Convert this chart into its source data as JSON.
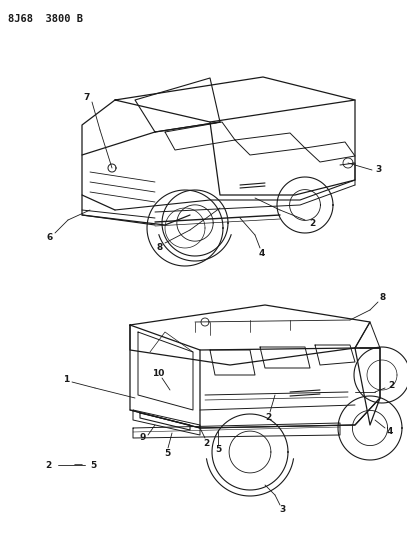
{
  "title": "8J68  3800 B",
  "bg": "#ffffff",
  "lc": "#1a1a1a",
  "fs_title": 7.5,
  "fs_label": 6.5
}
